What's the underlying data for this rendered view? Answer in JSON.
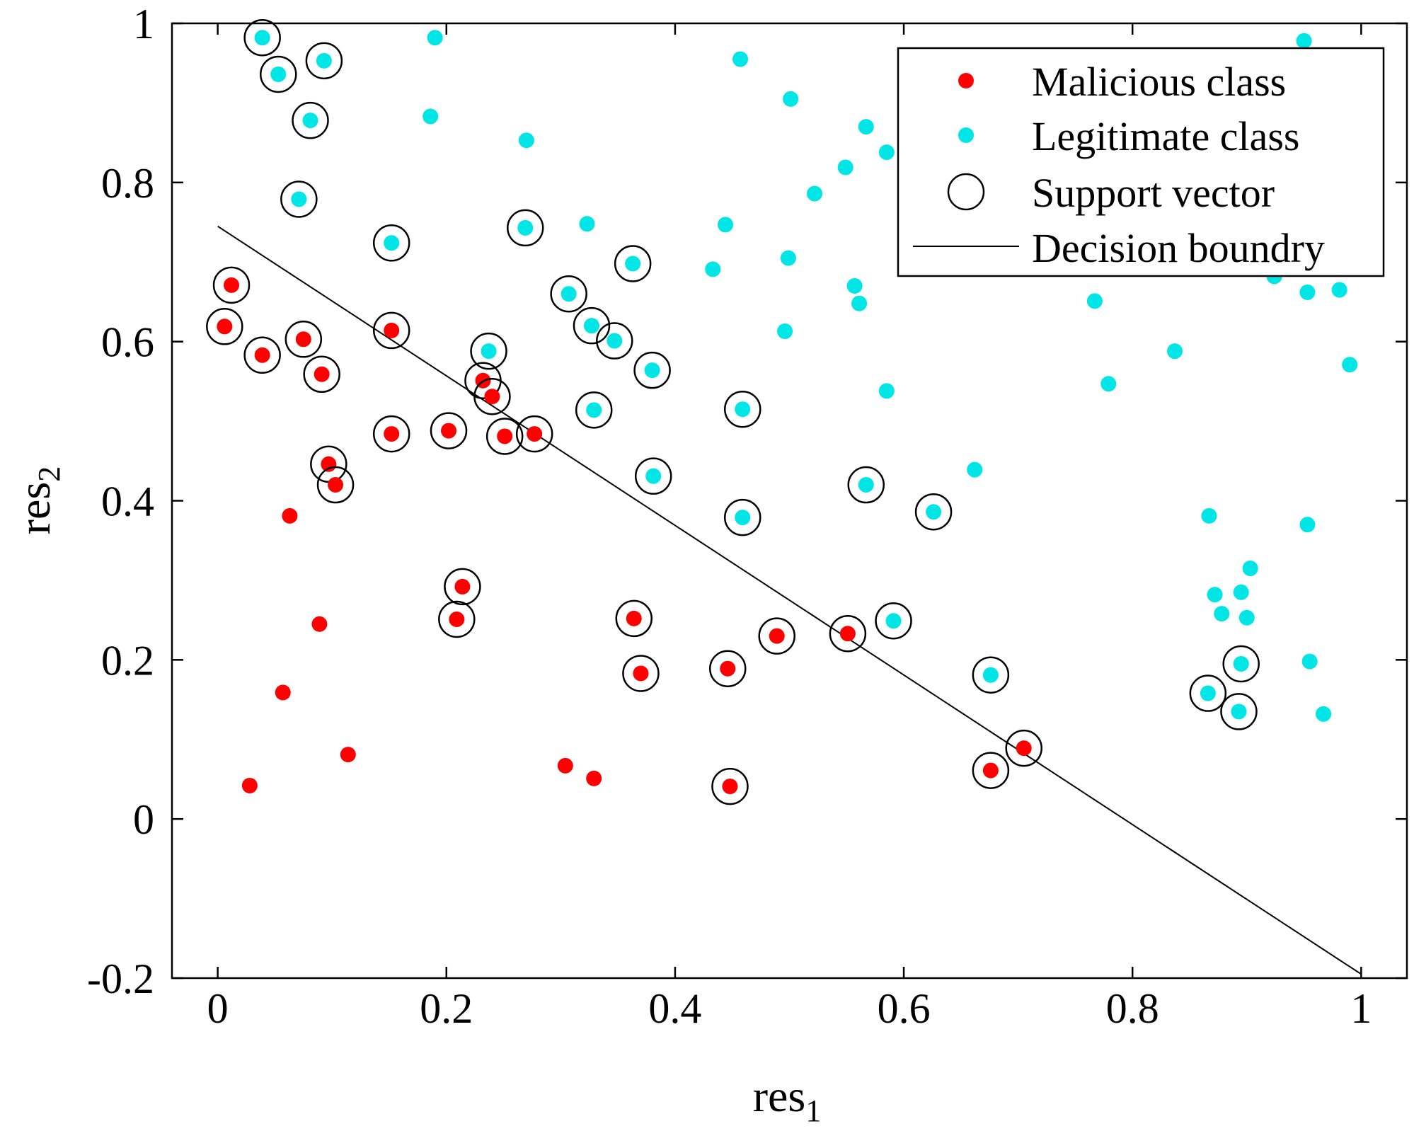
{
  "chart_data": {
    "type": "scatter",
    "title": "",
    "xlabel": {
      "base": "res",
      "sub": "1"
    },
    "ylabel": {
      "base": "res",
      "sub": "2"
    },
    "xlim": [
      -0.04,
      1.04
    ],
    "ylim": [
      -0.2,
      1.0
    ],
    "xticks": [
      0,
      0.2,
      0.4,
      0.6,
      0.8,
      1
    ],
    "xtick_labels": [
      "0",
      "0.2",
      "0.4",
      "0.6",
      "0.8",
      "1"
    ],
    "yticks": [
      -0.2,
      0,
      0.2,
      0.4,
      0.6,
      0.8,
      1
    ],
    "ytick_labels": [
      "-0.2",
      "0",
      "0.2",
      "0.4",
      "0.6",
      "0.8",
      "1"
    ],
    "grid": false,
    "legend_position": "top-right",
    "colors": {
      "malicious": "#ff0000",
      "legitimate": "#00e5e5",
      "support": "#000000",
      "boundary": "#000000"
    },
    "legend": [
      {
        "key": "malicious",
        "label": "Malicious class"
      },
      {
        "key": "legitimate",
        "label": "Legitimate class"
      },
      {
        "key": "support",
        "label": "Support vector"
      },
      {
        "key": "boundary",
        "label": "Decision boundry"
      }
    ],
    "decision_boundary": [
      [
        0.0,
        0.745
      ],
      [
        1.0,
        -0.195
      ]
    ],
    "series": [
      {
        "name": "Malicious class",
        "points": [
          [
            0.012,
            0.671,
            true
          ],
          [
            0.006,
            0.619,
            true
          ],
          [
            0.039,
            0.583,
            true
          ],
          [
            0.075,
            0.603,
            true
          ],
          [
            0.091,
            0.559,
            true
          ],
          [
            0.152,
            0.614,
            true
          ],
          [
            0.152,
            0.484,
            true
          ],
          [
            0.097,
            0.446,
            true
          ],
          [
            0.103,
            0.42,
            true
          ],
          [
            0.063,
            0.381,
            false
          ],
          [
            0.089,
            0.245,
            false
          ],
          [
            0.057,
            0.159,
            false
          ],
          [
            0.114,
            0.081,
            false
          ],
          [
            0.028,
            0.042,
            false
          ],
          [
            0.202,
            0.488,
            true
          ],
          [
            0.232,
            0.551,
            true
          ],
          [
            0.24,
            0.531,
            true
          ],
          [
            0.251,
            0.481,
            true
          ],
          [
            0.277,
            0.484,
            true
          ],
          [
            0.214,
            0.292,
            true
          ],
          [
            0.209,
            0.251,
            true
          ],
          [
            0.304,
            0.067,
            false
          ],
          [
            0.329,
            0.051,
            false
          ],
          [
            0.364,
            0.252,
            true
          ],
          [
            0.37,
            0.183,
            true
          ],
          [
            0.446,
            0.189,
            true
          ],
          [
            0.448,
            0.041,
            true
          ],
          [
            0.489,
            0.23,
            true
          ],
          [
            0.551,
            0.233,
            true
          ],
          [
            0.676,
            0.061,
            true
          ],
          [
            0.705,
            0.089,
            true
          ]
        ]
      },
      {
        "name": "Legitimate class",
        "points": [
          [
            0.039,
            0.982,
            true
          ],
          [
            0.053,
            0.936,
            true
          ],
          [
            0.093,
            0.953,
            true
          ],
          [
            0.081,
            0.878,
            true
          ],
          [
            0.071,
            0.779,
            true
          ],
          [
            0.152,
            0.724,
            true
          ],
          [
            0.19,
            0.982,
            false
          ],
          [
            0.186,
            0.883,
            false
          ],
          [
            0.27,
            0.853,
            false
          ],
          [
            0.269,
            0.743,
            true
          ],
          [
            0.323,
            0.748,
            false
          ],
          [
            0.237,
            0.588,
            true
          ],
          [
            0.307,
            0.66,
            true
          ],
          [
            0.327,
            0.62,
            true
          ],
          [
            0.347,
            0.601,
            true
          ],
          [
            0.363,
            0.698,
            true
          ],
          [
            0.38,
            0.564,
            true
          ],
          [
            0.329,
            0.514,
            true
          ],
          [
            0.381,
            0.431,
            true
          ],
          [
            0.433,
            0.691,
            false
          ],
          [
            0.444,
            0.747,
            false
          ],
          [
            0.457,
            0.955,
            false
          ],
          [
            0.459,
            0.515,
            true
          ],
          [
            0.459,
            0.379,
            true
          ],
          [
            0.501,
            0.905,
            false
          ],
          [
            0.499,
            0.705,
            false
          ],
          [
            0.496,
            0.613,
            false
          ],
          [
            0.522,
            0.786,
            false
          ],
          [
            0.549,
            0.819,
            false
          ],
          [
            0.557,
            0.67,
            false
          ],
          [
            0.561,
            0.648,
            false
          ],
          [
            0.567,
            0.87,
            false
          ],
          [
            0.585,
            0.838,
            false
          ],
          [
            0.585,
            0.538,
            false
          ],
          [
            0.567,
            0.42,
            true
          ],
          [
            0.591,
            0.249,
            true
          ],
          [
            0.626,
            0.386,
            true
          ],
          [
            0.662,
            0.439,
            false
          ],
          [
            0.676,
            0.181,
            true
          ],
          [
            0.767,
            0.651,
            false
          ],
          [
            0.779,
            0.547,
            false
          ],
          [
            0.837,
            0.588,
            false
          ],
          [
            0.867,
            0.381,
            false
          ],
          [
            0.872,
            0.282,
            false
          ],
          [
            0.878,
            0.258,
            false
          ],
          [
            0.895,
            0.285,
            false
          ],
          [
            0.9,
            0.253,
            false
          ],
          [
            0.903,
            0.315,
            false
          ],
          [
            0.895,
            0.195,
            true
          ],
          [
            0.866,
            0.158,
            true
          ],
          [
            0.893,
            0.135,
            true
          ],
          [
            0.924,
            0.682,
            false
          ],
          [
            0.95,
            0.978,
            false
          ],
          [
            0.953,
            0.662,
            false
          ],
          [
            0.953,
            0.37,
            false
          ],
          [
            0.955,
            0.198,
            false
          ],
          [
            0.967,
            0.132,
            false
          ],
          [
            0.981,
            0.665,
            false
          ],
          [
            0.99,
            0.571,
            false
          ]
        ]
      }
    ]
  }
}
